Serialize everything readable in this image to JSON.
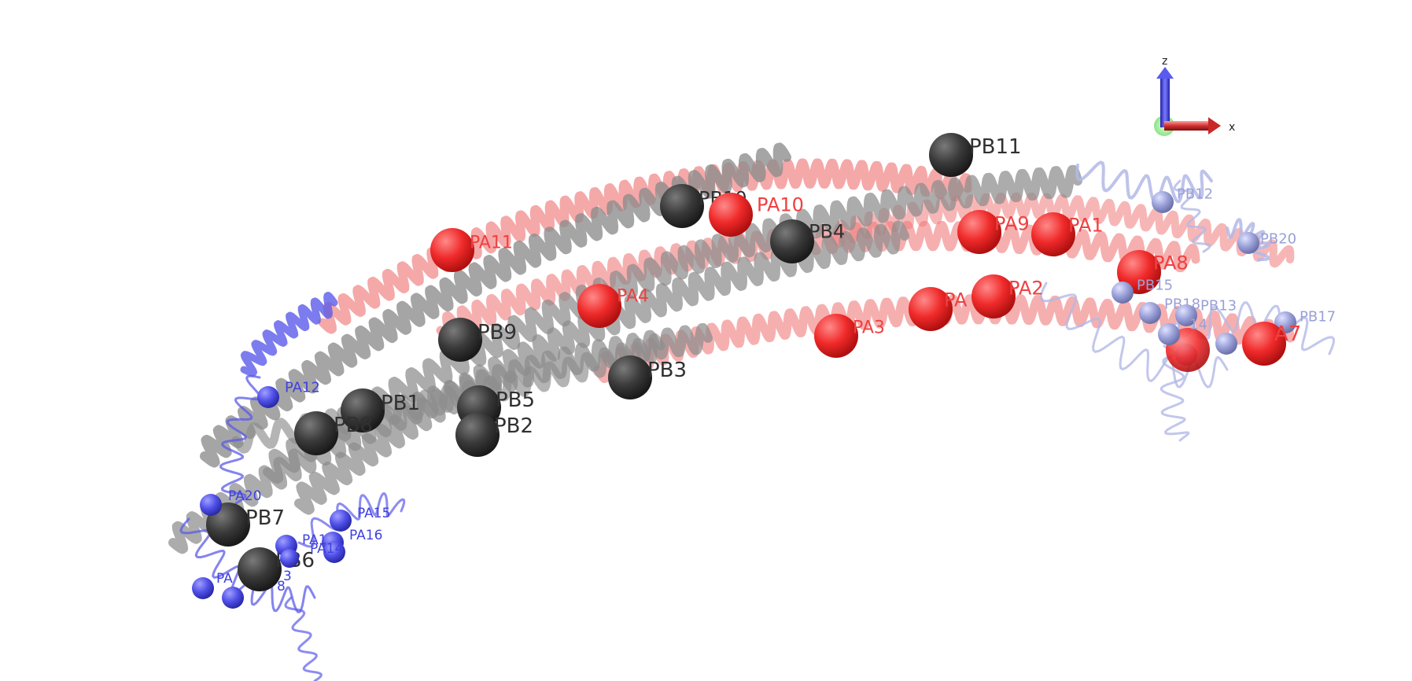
{
  "axes": {
    "z_label": "z",
    "x_label": "x"
  },
  "colors": {
    "background": "#ffffff",
    "chain_a_helix": "#f07a7a",
    "chain_b_helix": "#8c8c8c",
    "chain_a_end": "#5b5bea",
    "chain_b_end": "#b3b9e6",
    "red_bead": "#f03030",
    "dark_bead": "#3a3a3a",
    "blue_bead": "#5050e8",
    "pale_bead": "#9aa0d8",
    "red_text": "#f04040",
    "dark_text": "#303030",
    "blue_text": "#4040e0",
    "pale_text": "#9aa0d8"
  },
  "beads": [
    {
      "label": "PB11",
      "group": "dark"
    },
    {
      "label": "PB10",
      "group": "dark"
    },
    {
      "label": "PA10",
      "group": "red"
    },
    {
      "label": "PB4",
      "group": "dark"
    },
    {
      "label": "PA11",
      "group": "red"
    },
    {
      "label": "PA9",
      "group": "red"
    },
    {
      "label": "PA1",
      "group": "red"
    },
    {
      "label": "PA8",
      "group": "red"
    },
    {
      "label": "PA4",
      "group": "red"
    },
    {
      "label": "PA2",
      "group": "red"
    },
    {
      "label": "PA",
      "group": "red"
    },
    {
      "label": "PA3",
      "group": "red"
    },
    {
      "label": "PB9",
      "group": "dark"
    },
    {
      "label": "PB3",
      "group": "dark"
    },
    {
      "label": "PB1",
      "group": "dark"
    },
    {
      "label": "PB8",
      "group": "dark"
    },
    {
      "label": "PB5",
      "group": "dark"
    },
    {
      "label": "PB2",
      "group": "dark"
    },
    {
      "label": "PB7",
      "group": "dark"
    },
    {
      "label": "PB6",
      "group": "dark"
    },
    {
      "label": "PA12",
      "group": "blue"
    },
    {
      "label": "PA20",
      "group": "blue"
    },
    {
      "label": "PA15",
      "group": "blue"
    },
    {
      "label": "PA16",
      "group": "blue"
    },
    {
      "label": "PA1",
      "group": "blue"
    },
    {
      "label": "PA14",
      "group": "blue"
    },
    {
      "label": "PA",
      "group": "blue"
    },
    {
      "label": "3",
      "group": "blue"
    },
    {
      "label": "8",
      "group": "blue"
    },
    {
      "label": "PB12",
      "group": "pale"
    },
    {
      "label": "PB20",
      "group": "pale"
    },
    {
      "label": "PB15",
      "group": "pale"
    },
    {
      "label": "PB18",
      "group": "pale"
    },
    {
      "label": "PB13",
      "group": "pale"
    },
    {
      "label": "PB17",
      "group": "pale"
    },
    {
      "label": "14",
      "group": "pale"
    },
    {
      "label": "A7",
      "group": "red"
    }
  ]
}
